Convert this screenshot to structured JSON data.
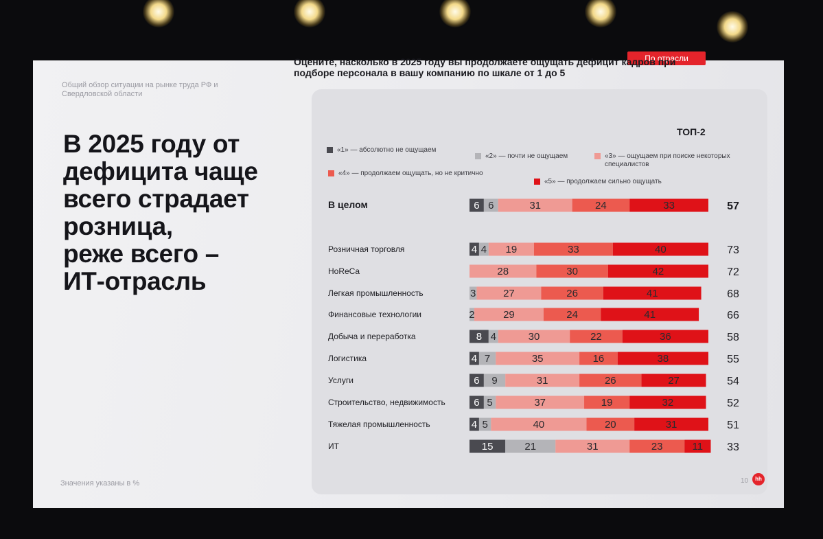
{
  "slide": {
    "breadcrumb": "Общий обзор ситуации на рынке труда РФ и Свердловской области",
    "headline": "В 2025 году от\nдефицита чаще\nвсего страдает\nрозница,\nреже всего –\nИТ-отрасль",
    "footnote": "Значения указаны в %",
    "page_number": "10",
    "logo_text": "hh",
    "filter_label": "По отрасли",
    "question": "Оцените, насколько в 2025 году вы продолжаете ощущать дефицит кадров при подборе персонала в вашу компанию по шкале от 1 до 5",
    "legend": [
      {
        "label": "«1» — абсолютно не ощущаем",
        "color": "#4a4a50"
      },
      {
        "label": "«2» — почти не ощущаем",
        "color": "#b4b4b8"
      },
      {
        "label": "«3» — ощущаем при поиске некоторых специалистов",
        "color": "#ef9a94"
      },
      {
        "label": "«4» — продолжаем ощущать, но не критично",
        "color": "#ec5a4f"
      },
      {
        "label": "«5» — продолжаем сильно ощущать",
        "color": "#df1218"
      }
    ],
    "top2_header": "ТОП-2"
  },
  "chart_data": {
    "type": "bar",
    "orientation": "horizontal",
    "stacked": true,
    "unit": "%",
    "series_colors": [
      "#4a4a50",
      "#b4b4b8",
      "#ef9a94",
      "#ec5a4f",
      "#df1218"
    ],
    "series": [
      {
        "name": "«1» — абсолютно не ощущаем",
        "values": [
          6,
          4,
          null,
          0,
          0,
          8,
          4,
          6,
          6,
          4,
          15
        ]
      },
      {
        "name": "«2» — почти не ощущаем",
        "values": [
          6,
          4,
          null,
          3,
          2,
          4,
          7,
          9,
          5,
          5,
          21
        ]
      },
      {
        "name": "«3» — ощущаем при поиске некоторых специалистов",
        "values": [
          31,
          19,
          28,
          27,
          29,
          30,
          35,
          31,
          37,
          40,
          31
        ]
      },
      {
        "name": "«4» — продолжаем ощущать, но не критично",
        "values": [
          24,
          33,
          30,
          26,
          24,
          22,
          16,
          26,
          19,
          20,
          23
        ]
      },
      {
        "name": "«5» — продолжаем сильно ощущать",
        "values": [
          33,
          40,
          42,
          41,
          41,
          36,
          38,
          27,
          32,
          31,
          11
        ]
      }
    ],
    "categories": [
      "В целом",
      "Розничная торговля",
      "HoReCa",
      "Легкая промышленность",
      "Финансовые технологии",
      "Добыча и переработка",
      "Логистика",
      "Услуги",
      "Строительство, недвижимость",
      "Тяжелая промышленность",
      "ИТ"
    ],
    "top2": [
      57,
      73,
      72,
      68,
      66,
      58,
      55,
      54,
      52,
      51,
      33
    ],
    "top2_label": "ТОП-2"
  }
}
